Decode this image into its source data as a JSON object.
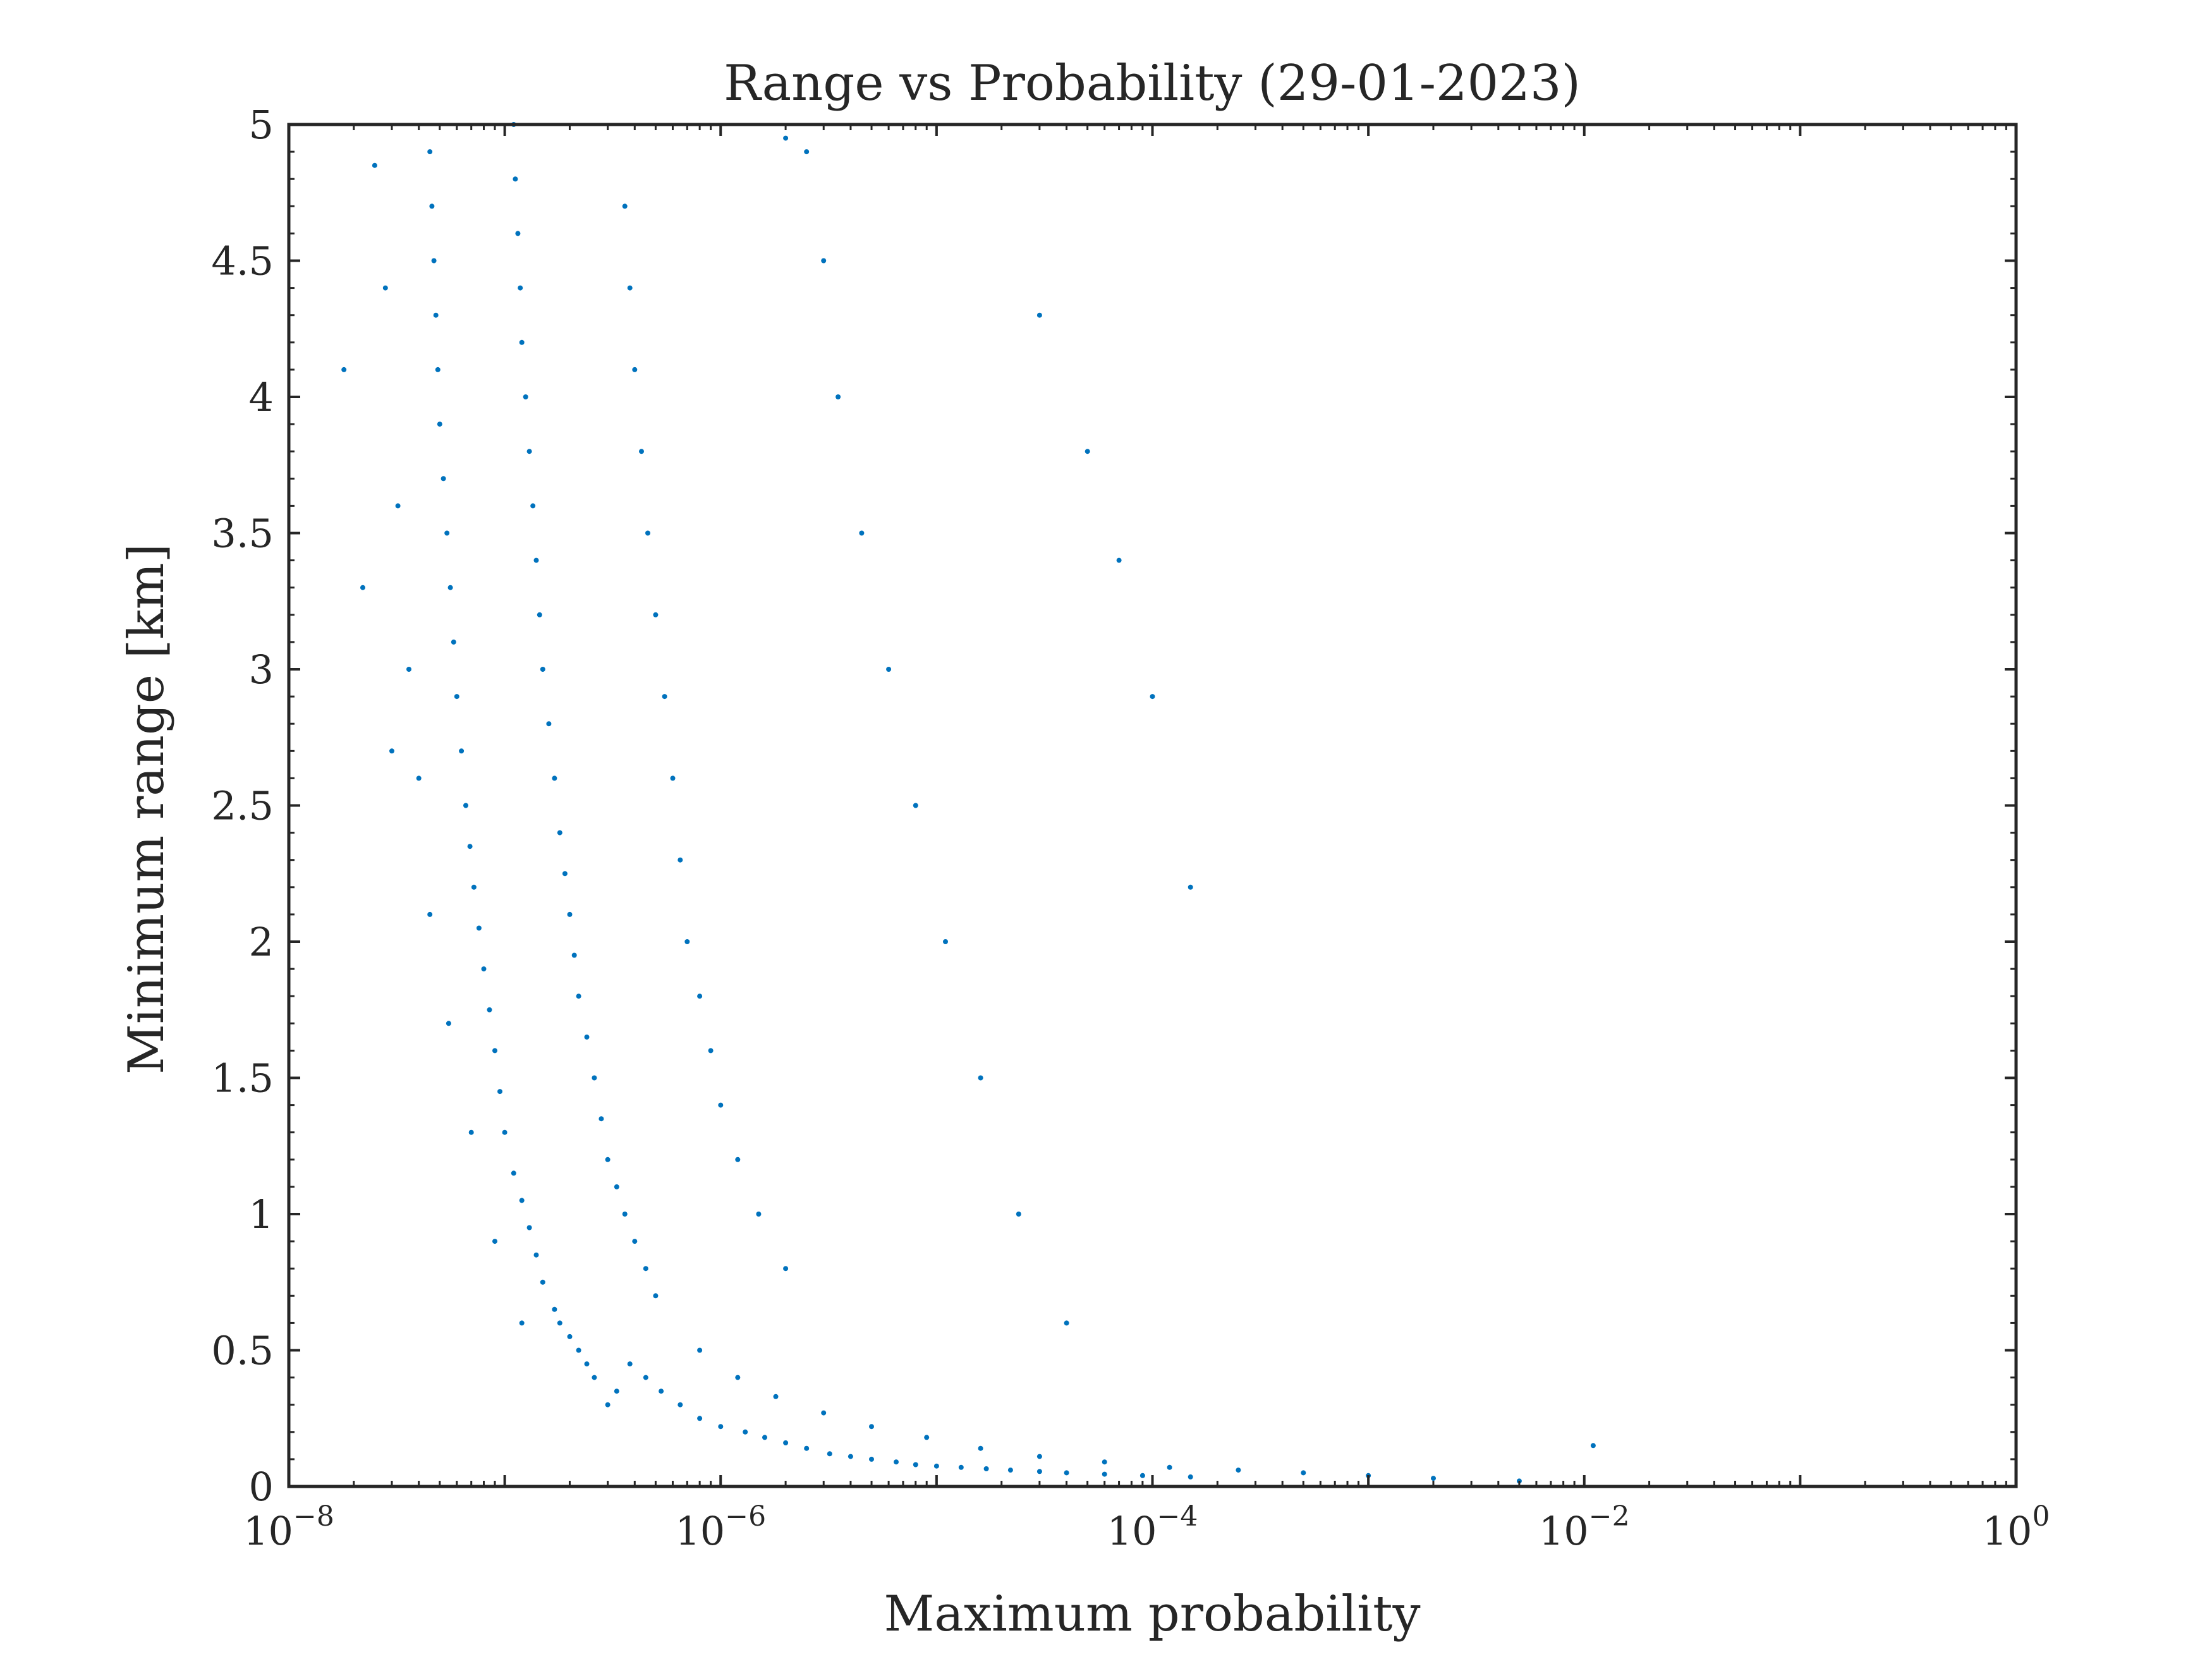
{
  "chart_data": {
    "type": "scatter",
    "title": "Range vs Probability (29-01-2023)",
    "xlabel": "Maximum probability",
    "ylabel": "Minimum range [km]",
    "x_scale": "log",
    "xlim": [
      1e-08,
      1
    ],
    "ylim": [
      0,
      5
    ],
    "x_ticks": [
      {
        "value": 1e-08,
        "base": "10",
        "exp": "−8"
      },
      {
        "value": 1e-06,
        "base": "10",
        "exp": "−6"
      },
      {
        "value": 0.0001,
        "base": "10",
        "exp": "−4"
      },
      {
        "value": 0.01,
        "base": "10",
        "exp": "−2"
      },
      {
        "value": 1,
        "base": "10",
        "exp": "0"
      }
    ],
    "y_ticks": [
      {
        "value": 0,
        "label": "0"
      },
      {
        "value": 0.5,
        "label": "0.5"
      },
      {
        "value": 1,
        "label": "1"
      },
      {
        "value": 1.5,
        "label": "1.5"
      },
      {
        "value": 2,
        "label": "2"
      },
      {
        "value": 2.5,
        "label": "2.5"
      },
      {
        "value": 3,
        "label": "3"
      },
      {
        "value": 3.5,
        "label": "3.5"
      },
      {
        "value": 4,
        "label": "4"
      },
      {
        "value": 4.5,
        "label": "4.5"
      },
      {
        "value": 5,
        "label": "5"
      }
    ],
    "grid": false,
    "marker_color": "#0072BD",
    "series": [
      {
        "description": "dense band of conjunction events",
        "points": [
          [
            3e-07,
            0.3
          ],
          [
            3.3e-07,
            0.35
          ],
          [
            2.6e-07,
            0.4
          ],
          [
            2.4e-07,
            0.45
          ],
          [
            2.2e-07,
            0.5
          ],
          [
            2e-07,
            0.55
          ],
          [
            1.8e-07,
            0.6
          ],
          [
            1.7e-07,
            0.65
          ],
          [
            3.8e-07,
            0.45
          ],
          [
            4.5e-07,
            0.4
          ],
          [
            5.3e-07,
            0.35
          ],
          [
            6.5e-07,
            0.3
          ],
          [
            8e-07,
            0.25
          ],
          [
            1e-06,
            0.22
          ],
          [
            1.3e-06,
            0.2
          ],
          [
            1.6e-06,
            0.18
          ],
          [
            2e-06,
            0.16
          ],
          [
            2.5e-06,
            0.14
          ],
          [
            3.2e-06,
            0.12
          ],
          [
            4e-06,
            0.11
          ],
          [
            5e-06,
            0.1
          ],
          [
            6.5e-06,
            0.09
          ],
          [
            8e-06,
            0.08
          ],
          [
            1e-05,
            0.075
          ],
          [
            1.3e-05,
            0.07
          ],
          [
            1.7e-05,
            0.065
          ],
          [
            2.2e-05,
            0.06
          ],
          [
            3e-05,
            0.055
          ],
          [
            4e-05,
            0.05
          ],
          [
            6e-05,
            0.045
          ],
          [
            9e-05,
            0.04
          ],
          [
            0.00015,
            0.035
          ],
          [
            1.5e-07,
            0.75
          ],
          [
            1.4e-07,
            0.85
          ],
          [
            1.3e-07,
            0.95
          ],
          [
            1.2e-07,
            1.05
          ],
          [
            1.1e-07,
            1.15
          ],
          [
            1e-07,
            1.3
          ],
          [
            9.5e-08,
            1.45
          ],
          [
            9e-08,
            1.6
          ],
          [
            8.5e-08,
            1.75
          ],
          [
            8e-08,
            1.9
          ],
          [
            7.6e-08,
            2.05
          ],
          [
            7.2e-08,
            2.2
          ],
          [
            6.9e-08,
            2.35
          ],
          [
            6.6e-08,
            2.5
          ],
          [
            6.3e-08,
            2.7
          ],
          [
            6e-08,
            2.9
          ],
          [
            5.8e-08,
            3.1
          ],
          [
            5.6e-08,
            3.3
          ],
          [
            5.4e-08,
            3.5
          ],
          [
            5.2e-08,
            3.7
          ],
          [
            5e-08,
            3.9
          ],
          [
            4.9e-08,
            4.1
          ],
          [
            4.8e-08,
            4.3
          ],
          [
            4.7e-08,
            4.5
          ],
          [
            4.6e-08,
            4.7
          ],
          [
            4.5e-08,
            4.9
          ],
          [
            5e-07,
            0.7
          ],
          [
            4.5e-07,
            0.8
          ],
          [
            4e-07,
            0.9
          ],
          [
            3.6e-07,
            1.0
          ],
          [
            3.3e-07,
            1.1
          ],
          [
            3e-07,
            1.2
          ],
          [
            2.8e-07,
            1.35
          ],
          [
            2.6e-07,
            1.5
          ],
          [
            2.4e-07,
            1.65
          ],
          [
            2.2e-07,
            1.8
          ],
          [
            2.1e-07,
            1.95
          ],
          [
            2e-07,
            2.1
          ],
          [
            1.9e-07,
            2.25
          ],
          [
            1.8e-07,
            2.4
          ],
          [
            1.7e-07,
            2.6
          ],
          [
            1.6e-07,
            2.8
          ],
          [
            1.5e-07,
            3.0
          ],
          [
            1.45e-07,
            3.2
          ],
          [
            1.4e-07,
            3.4
          ],
          [
            1.35e-07,
            3.6
          ],
          [
            1.3e-07,
            3.8
          ],
          [
            1.25e-07,
            4.0
          ],
          [
            1.2e-07,
            4.2
          ],
          [
            1.18e-07,
            4.4
          ],
          [
            1.15e-07,
            4.6
          ],
          [
            1.12e-07,
            4.8
          ],
          [
            1.1e-07,
            5.0
          ],
          [
            8e-07,
            0.5
          ],
          [
            1.2e-06,
            0.4
          ],
          [
            1.8e-06,
            0.33
          ],
          [
            3e-06,
            0.27
          ],
          [
            5e-06,
            0.22
          ],
          [
            9e-06,
            0.18
          ],
          [
            1.6e-05,
            0.14
          ],
          [
            3e-05,
            0.11
          ],
          [
            6e-05,
            0.09
          ],
          [
            0.00012,
            0.07
          ],
          [
            0.00025,
            0.06
          ],
          [
            0.0005,
            0.05
          ],
          [
            0.001,
            0.04
          ],
          [
            0.002,
            0.03
          ],
          [
            0.005,
            0.02
          ],
          [
            0.011,
            0.15
          ],
          [
            2e-06,
            0.8
          ],
          [
            1.5e-06,
            1.0
          ],
          [
            1.2e-06,
            1.2
          ],
          [
            1e-06,
            1.4
          ],
          [
            9e-07,
            1.6
          ],
          [
            8e-07,
            1.8
          ],
          [
            7e-07,
            2.0
          ],
          [
            6.5e-07,
            2.3
          ],
          [
            6e-07,
            2.6
          ],
          [
            5.5e-07,
            2.9
          ],
          [
            5e-07,
            3.2
          ],
          [
            4.6e-07,
            3.5
          ],
          [
            4.3e-07,
            3.8
          ],
          [
            4e-07,
            4.1
          ],
          [
            3.8e-07,
            4.4
          ],
          [
            3.6e-07,
            4.7
          ],
          [
            3e-06,
            4.5
          ],
          [
            3.5e-06,
            4.0
          ],
          [
            4.5e-06,
            3.5
          ],
          [
            6e-06,
            3.0
          ],
          [
            8e-06,
            2.5
          ],
          [
            1.1e-05,
            2.0
          ],
          [
            1.6e-05,
            1.5
          ],
          [
            2.4e-05,
            1.0
          ],
          [
            4e-05,
            0.6
          ],
          [
            0.00015,
            2.2
          ],
          [
            0.0001,
            2.9
          ],
          [
            7e-05,
            3.4
          ],
          [
            5e-05,
            3.8
          ],
          [
            3e-05,
            4.3
          ],
          [
            2.5e-06,
            4.9
          ],
          [
            2e-06,
            4.95
          ],
          [
            2.5e-08,
            4.85
          ],
          [
            2.8e-08,
            4.4
          ],
          [
            3.2e-08,
            3.6
          ],
          [
            3.6e-08,
            3.0
          ],
          [
            4e-08,
            2.6
          ],
          [
            4.5e-08,
            2.1
          ],
          [
            5.5e-08,
            1.7
          ],
          [
            7e-08,
            1.3
          ],
          [
            9e-08,
            0.9
          ],
          [
            1.2e-07,
            0.6
          ],
          [
            3e-08,
            2.7
          ],
          [
            2.2e-08,
            3.3
          ],
          [
            1.8e-08,
            4.1
          ]
        ]
      }
    ]
  }
}
